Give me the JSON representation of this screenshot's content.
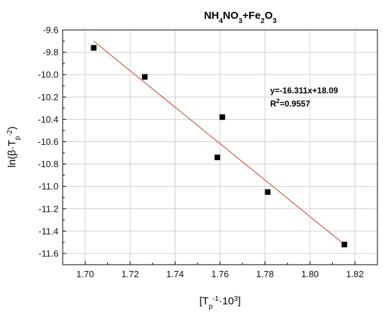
{
  "chart_data": {
    "type": "scatter",
    "title": {
      "parts": [
        {
          "text": "NH",
          "sub": false
        },
        {
          "text": "4",
          "sub": true
        },
        {
          "text": "NO",
          "sub": false
        },
        {
          "text": "3",
          "sub": true
        },
        {
          "text": "+Fe",
          "sub": false
        },
        {
          "text": "2",
          "sub": true
        },
        {
          "text": "O",
          "sub": false
        },
        {
          "text": "3",
          "sub": true
        }
      ]
    },
    "xlabel": {
      "parts": [
        {
          "text": "[T",
          "baseline": "normal"
        },
        {
          "text": "p",
          "baseline": "sub"
        },
        {
          "text": "-1",
          "baseline": "super"
        },
        {
          "text": "·10",
          "baseline": "normal"
        },
        {
          "text": "3",
          "baseline": "super"
        },
        {
          "text": "]",
          "baseline": "normal"
        }
      ]
    },
    "ylabel": {
      "parts": [
        {
          "text": "ln(β·T",
          "baseline": "normal"
        },
        {
          "text": "p",
          "baseline": "sub"
        },
        {
          "text": "-2",
          "baseline": "super"
        },
        {
          "text": ")",
          "baseline": "normal"
        }
      ]
    },
    "xlim": [
      1.69,
      1.83
    ],
    "ylim": [
      -11.7,
      -9.6
    ],
    "xticks": [
      1.7,
      1.72,
      1.74,
      1.76,
      1.78,
      1.8,
      1.82
    ],
    "xtick_labels": [
      "1.70",
      "1.72",
      "1.74",
      "1.76",
      "1.78",
      "1.80",
      "1.82"
    ],
    "yticks": [
      -9.6,
      -9.8,
      -10.0,
      -10.2,
      -10.4,
      -10.6,
      -10.8,
      -11.0,
      -11.2,
      -11.4,
      -11.6
    ],
    "ytick_labels": [
      "-9.6",
      "-9.8",
      "-10.0",
      "-10.2",
      "-10.4",
      "-10.6",
      "-10.8",
      "-11.0",
      "-11.2",
      "-11.4",
      "-11.6"
    ],
    "grid": true,
    "series": [
      {
        "marker": "square",
        "color": "#000000",
        "points": [
          {
            "x": 1.7038,
            "y": -9.76
          },
          {
            "x": 1.7265,
            "y": -10.02
          },
          {
            "x": 1.761,
            "y": -10.38
          },
          {
            "x": 1.7588,
            "y": -10.74
          },
          {
            "x": 1.7812,
            "y": -11.05
          },
          {
            "x": 1.8153,
            "y": -11.52
          }
        ]
      }
    ],
    "fit": {
      "slope": -16.311,
      "intercept": 18.09,
      "x_range": [
        1.7038,
        1.8153
      ],
      "color": "#c0392b"
    },
    "annotation": {
      "equation": "y=-16.311x+18.09",
      "r2_prefix": "R",
      "r2_sup": "2",
      "r2_value": "=0.9557"
    }
  }
}
